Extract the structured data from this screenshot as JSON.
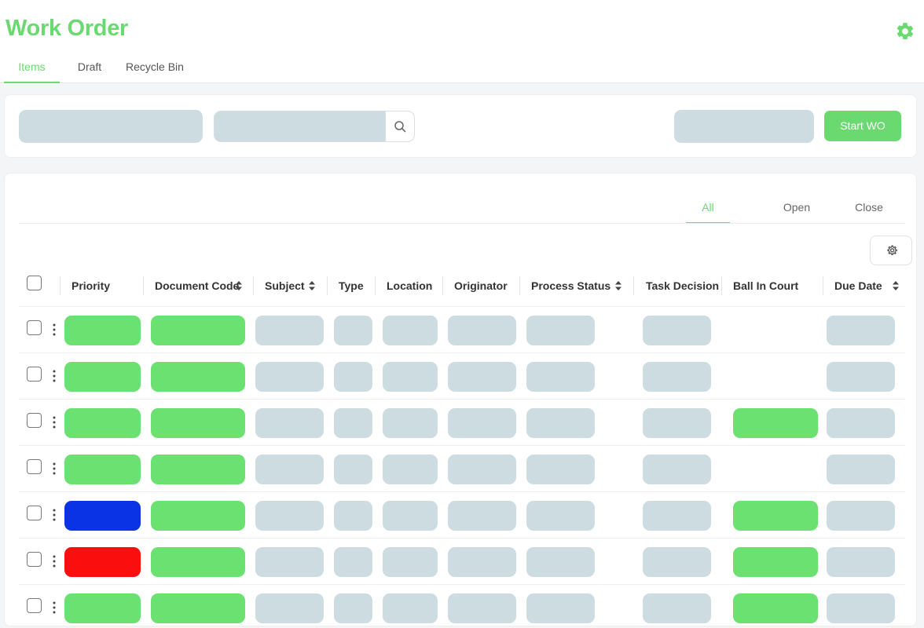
{
  "header": {
    "title": "Work Order",
    "settings_icon": "gear-icon",
    "tabs": [
      {
        "label": "Items",
        "active": true
      },
      {
        "label": "Draft",
        "active": false
      },
      {
        "label": "Recycle Bin",
        "active": false
      }
    ]
  },
  "toolbar": {
    "start_label": "Start WO",
    "search_icon": "search-icon"
  },
  "filters": {
    "tabs": [
      {
        "label": "All",
        "active": true
      },
      {
        "label": "Open",
        "active": false
      },
      {
        "label": "Close",
        "active": false
      }
    ],
    "column_settings_icon": "gear-icon"
  },
  "table": {
    "columns": [
      {
        "label": "Priority",
        "sortable": false
      },
      {
        "label": "Document Code",
        "sortable": true
      },
      {
        "label": "Subject",
        "sortable": true
      },
      {
        "label": "Type",
        "sortable": false
      },
      {
        "label": "Location",
        "sortable": false
      },
      {
        "label": "Originator",
        "sortable": false
      },
      {
        "label": "Process Status",
        "sortable": true
      },
      {
        "label": "Task Decision",
        "sortable": false
      },
      {
        "label": "Ball In Court",
        "sortable": false
      },
      {
        "label": "Due Date",
        "sortable": true
      }
    ],
    "rows": [
      {
        "priority": "green",
        "ball_in_court": false
      },
      {
        "priority": "green",
        "ball_in_court": false
      },
      {
        "priority": "green",
        "ball_in_court": true
      },
      {
        "priority": "green",
        "ball_in_court": false
      },
      {
        "priority": "blue",
        "ball_in_court": true
      },
      {
        "priority": "red",
        "ball_in_court": true
      },
      {
        "priority": "green",
        "ball_in_court": true
      }
    ]
  },
  "colors": {
    "accent": "#6ad96f",
    "placeholder": "#cddce1",
    "priority_blue": "#0a33e6",
    "priority_red": "#fa0e0e"
  }
}
